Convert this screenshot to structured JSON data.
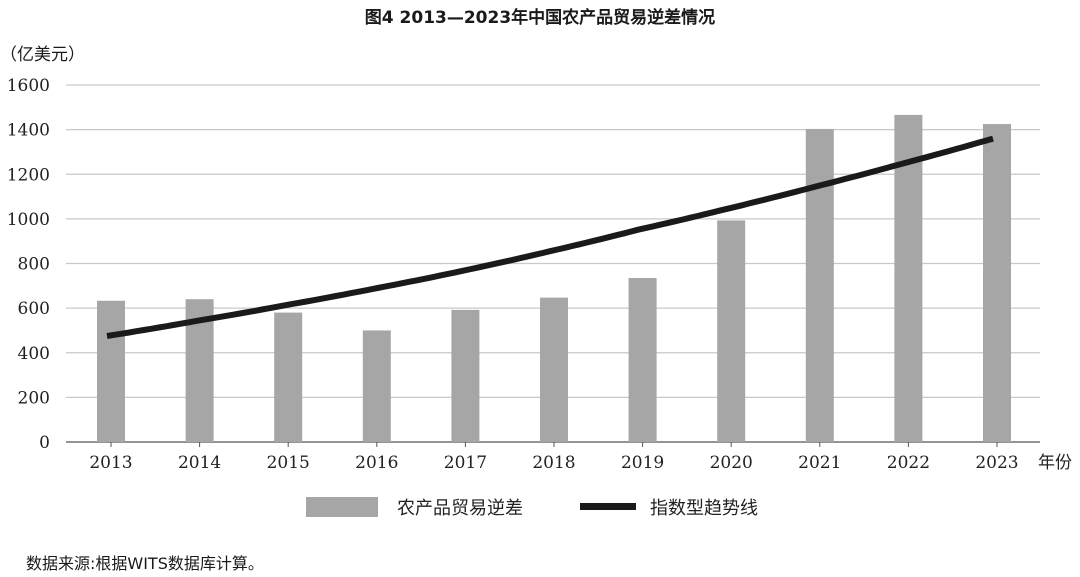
{
  "chart_data": {
    "type": "bar",
    "title": "图4 2013—2023年中国农产品贸易逆差情况",
    "ylabel": "（亿美元）",
    "xlabel": "年份",
    "categories": [
      "2013",
      "2014",
      "2015",
      "2016",
      "2017",
      "2018",
      "2019",
      "2020",
      "2021",
      "2022",
      "2023"
    ],
    "series": [
      {
        "name": "农产品贸易逆差",
        "type": "bar",
        "color": "#a6a6a6",
        "values": [
          633,
          640,
          580,
          500,
          592,
          647,
          735,
          993,
          1403,
          1466,
          1425
        ]
      },
      {
        "name": "指数型趋势线",
        "type": "line",
        "curve": "exponential",
        "color": "#1a1a1a",
        "values": [
          475,
          542,
          612,
          686,
          766,
          855,
          952,
          1045,
          1145,
          1250,
          1360
        ]
      }
    ],
    "ylim": [
      0,
      1600
    ],
    "yticks": [
      0,
      200,
      400,
      600,
      800,
      1000,
      1200,
      1400,
      1600
    ],
    "ytick_labels": [
      "0",
      "200",
      "400",
      "600",
      "800",
      "1000",
      "1200",
      "1400",
      "1600"
    ],
    "grid": true,
    "legend": "bottom",
    "source_note": "数据来源:根据WITS数据库计算。"
  }
}
